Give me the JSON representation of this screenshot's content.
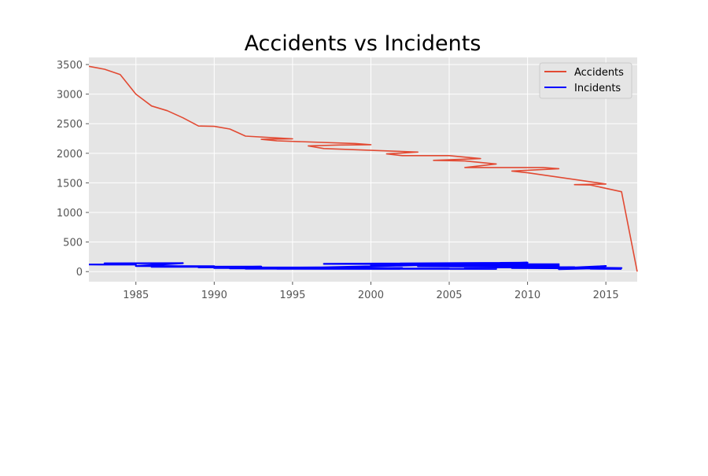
{
  "chart_data": {
    "type": "line",
    "title": "Accidents vs Incidents",
    "xlabel": "",
    "ylabel": "",
    "xlim": [
      1982,
      2017
    ],
    "ylim": [
      -170,
      3620
    ],
    "x_ticks": [
      1985,
      1990,
      1995,
      2000,
      2005,
      2010,
      2015
    ],
    "y_ticks": [
      0,
      500,
      1000,
      1500,
      2000,
      2500,
      3000,
      3500
    ],
    "grid": true,
    "legend_position": "top-right",
    "series": [
      {
        "name": "Accidents",
        "color": "#E24A33",
        "points": [
          [
            1982,
            3470
          ],
          [
            1983,
            3420
          ],
          [
            1984,
            3330
          ],
          [
            1985,
            3000
          ],
          [
            1986,
            2800
          ],
          [
            1987,
            2720
          ],
          [
            1988,
            2600
          ],
          [
            1989,
            2460
          ],
          [
            1990,
            2455
          ],
          [
            1991,
            2410
          ],
          [
            1992,
            2290
          ],
          [
            1995,
            2245
          ],
          [
            1993,
            2235
          ],
          [
            1994,
            2210
          ],
          [
            1999,
            2165
          ],
          [
            2000,
            2145
          ],
          [
            1998,
            2140
          ],
          [
            1996,
            2125
          ],
          [
            1997,
            2080
          ],
          [
            2003,
            2020
          ],
          [
            2001,
            1990
          ],
          [
            2002,
            1960
          ],
          [
            2005,
            1960
          ],
          [
            2007,
            1910
          ],
          [
            2004,
            1880
          ],
          [
            2006,
            1870
          ],
          [
            2008,
            1820
          ],
          [
            2006,
            1760
          ],
          [
            2011,
            1760
          ],
          [
            2012,
            1740
          ],
          [
            2009,
            1700
          ],
          [
            2010,
            1670
          ],
          [
            2015,
            1480
          ],
          [
            2013,
            1470
          ],
          [
            2014,
            1465
          ],
          [
            2016,
            1350
          ],
          [
            2017,
            0
          ]
        ]
      },
      {
        "name": "Incidents",
        "color": "#0000FF",
        "points": [
          [
            1982,
            120
          ],
          [
            1985,
            118
          ],
          [
            1983,
            140
          ],
          [
            1988,
            142
          ],
          [
            1985,
            95
          ],
          [
            1990,
            90
          ],
          [
            1986,
            80
          ],
          [
            1993,
            85
          ],
          [
            1989,
            72
          ],
          [
            1996,
            70
          ],
          [
            1990,
            60
          ],
          [
            1999,
            75
          ],
          [
            1991,
            55
          ],
          [
            2002,
            62
          ],
          [
            1992,
            50
          ],
          [
            2005,
            52
          ],
          [
            1994,
            48
          ],
          [
            2008,
            45
          ],
          [
            1995,
            60
          ],
          [
            2010,
            150
          ],
          [
            1997,
            130
          ],
          [
            2012,
            125
          ],
          [
            2000,
            110
          ],
          [
            2012,
            100
          ],
          [
            2003,
            90
          ],
          [
            2011,
            80
          ],
          [
            2006,
            70
          ],
          [
            2013,
            75
          ],
          [
            2009,
            60
          ],
          [
            2014,
            55
          ],
          [
            2012,
            40
          ],
          [
            2015,
            95
          ],
          [
            2013,
            70
          ],
          [
            2016,
            60
          ],
          [
            2014,
            50
          ],
          [
            2016,
            45
          ]
        ]
      }
    ]
  }
}
